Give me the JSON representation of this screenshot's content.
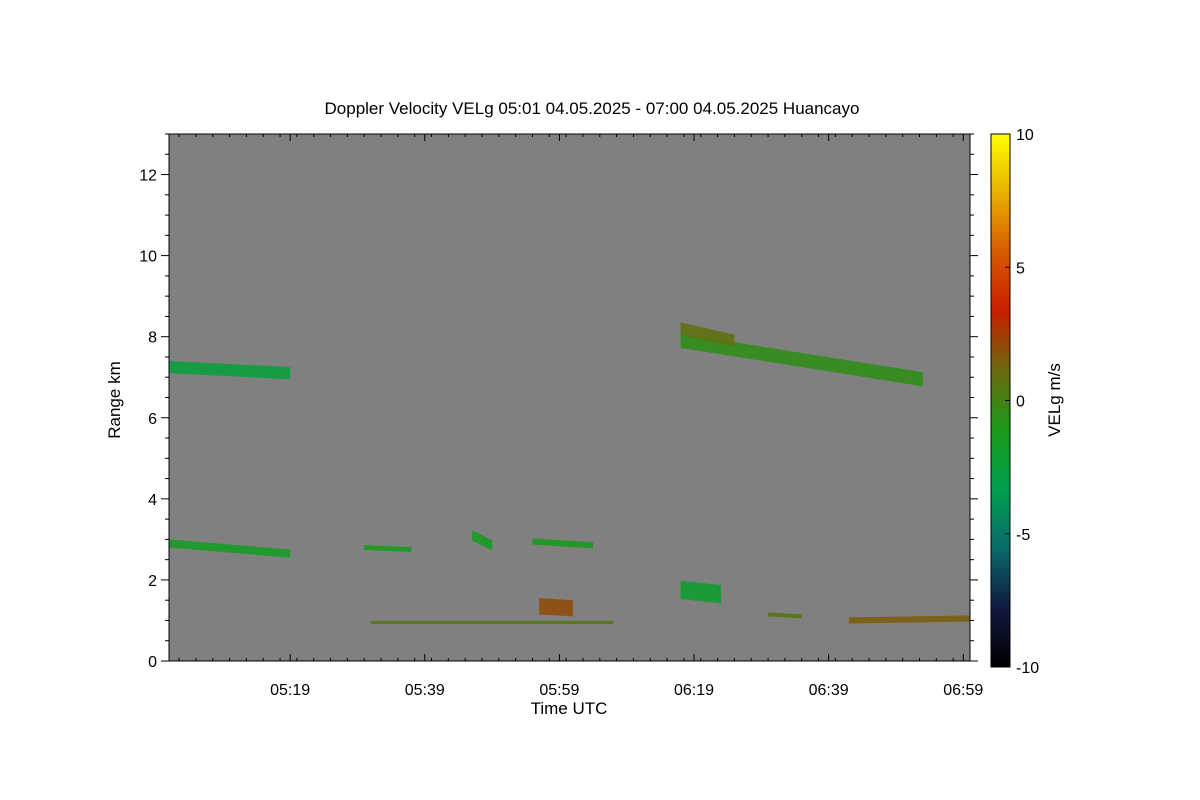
{
  "chart_data": {
    "type": "heatmap",
    "title": "Doppler Velocity VELg   05:01 04.05.2025 - 07:00 04.05.2025 Huancayo",
    "xlabel": "Time UTC",
    "ylabel": "Range km",
    "colorbar_label": "VELg m/s",
    "x_range_minutes_utc": [
      301,
      420
    ],
    "x_ticks": [
      {
        "minute": 319,
        "label": "05:19"
      },
      {
        "minute": 339,
        "label": "05:39"
      },
      {
        "minute": 359,
        "label": "05:59"
      },
      {
        "minute": 379,
        "label": "06:19"
      },
      {
        "minute": 399,
        "label": "06:39"
      },
      {
        "minute": 419,
        "label": "06:59"
      }
    ],
    "ylim": [
      0,
      13
    ],
    "y_ticks": [
      {
        "value": 0,
        "label": "0"
      },
      {
        "value": 2,
        "label": "2"
      },
      {
        "value": 4,
        "label": "4"
      },
      {
        "value": 6,
        "label": "6"
      },
      {
        "value": 8,
        "label": "8"
      },
      {
        "value": 10,
        "label": "10"
      },
      {
        "value": 12,
        "label": "12"
      }
    ],
    "clim": [
      -10,
      10
    ],
    "colorbar_ticks": [
      {
        "value": 10,
        "label": "10"
      },
      {
        "value": 5,
        "label": "5"
      },
      {
        "value": 0,
        "label": "0"
      },
      {
        "value": -5,
        "label": "-5"
      },
      {
        "value": -10,
        "label": "-10"
      }
    ],
    "colormap": [
      "#000000",
      "#101840",
      "#0a6a6a",
      "#00a050",
      "#1a9a1a",
      "#6a6a10",
      "#c81e00",
      "#d85a00",
      "#e8b000",
      "#ffff00"
    ],
    "background_color": "#808080",
    "echo_regions": [
      {
        "name": "layer-7km-early",
        "t_start": 301,
        "t_end": 319,
        "range_start": 7.25,
        "range_end": 7.1,
        "thickness_km": 0.3,
        "velocity": -2.5
      },
      {
        "name": "layer-7-8km-late",
        "t_start": 377,
        "t_end": 413,
        "range_start": 7.9,
        "range_end": 6.95,
        "thickness_km": 0.35,
        "velocity": -0.5
      },
      {
        "name": "layer-8km-onset",
        "t_start": 377,
        "t_end": 385,
        "range_start": 8.2,
        "range_end": 7.9,
        "thickness_km": 0.3,
        "velocity": 0.8
      },
      {
        "name": "layer-3km-a",
        "t_start": 301,
        "t_end": 319,
        "range_start": 2.9,
        "range_end": 2.65,
        "thickness_km": 0.2,
        "velocity": -1.5
      },
      {
        "name": "layer-3km-b",
        "t_start": 330,
        "t_end": 337,
        "range_start": 2.8,
        "range_end": 2.75,
        "thickness_km": 0.12,
        "velocity": -1.2
      },
      {
        "name": "layer-3km-c",
        "t_start": 346,
        "t_end": 349,
        "range_start": 3.1,
        "range_end": 2.85,
        "thickness_km": 0.25,
        "velocity": -1.5
      },
      {
        "name": "layer-3km-d",
        "t_start": 355,
        "t_end": 364,
        "range_start": 2.95,
        "range_end": 2.85,
        "thickness_km": 0.15,
        "velocity": -1.2
      },
      {
        "name": "cell-1.3km-0558",
        "t_start": 356,
        "t_end": 361,
        "range_start": 1.35,
        "range_end": 1.3,
        "thickness_km": 0.4,
        "velocity": 2.0
      },
      {
        "name": "cell-1.7km-0617",
        "t_start": 377,
        "t_end": 383,
        "range_start": 1.75,
        "range_end": 1.65,
        "thickness_km": 0.45,
        "velocity": -2.0
      },
      {
        "name": "low-layer-1km-a",
        "t_start": 331,
        "t_end": 367,
        "range_start": 0.95,
        "range_end": 0.95,
        "thickness_km": 0.08,
        "velocity": 0.5
      },
      {
        "name": "low-layer-1km-b",
        "t_start": 390,
        "t_end": 395,
        "range_start": 1.15,
        "range_end": 1.1,
        "thickness_km": 0.1,
        "velocity": 0.5
      },
      {
        "name": "low-layer-1km-c",
        "t_start": 402,
        "t_end": 420,
        "range_start": 1.0,
        "range_end": 1.05,
        "thickness_km": 0.15,
        "velocity": 1.5
      }
    ]
  }
}
